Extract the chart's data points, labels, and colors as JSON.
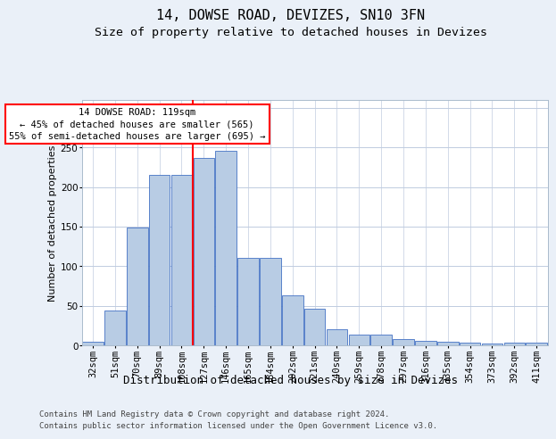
{
  "title1": "14, DOWSE ROAD, DEVIZES, SN10 3FN",
  "title2": "Size of property relative to detached houses in Devizes",
  "xlabel": "Distribution of detached houses by size in Devizes",
  "ylabel": "Number of detached properties",
  "categories": [
    "32sqm",
    "51sqm",
    "70sqm",
    "89sqm",
    "108sqm",
    "127sqm",
    "146sqm",
    "165sqm",
    "184sqm",
    "202sqm",
    "221sqm",
    "240sqm",
    "259sqm",
    "278sqm",
    "297sqm",
    "316sqm",
    "335sqm",
    "354sqm",
    "373sqm",
    "392sqm",
    "411sqm"
  ],
  "values": [
    4,
    44,
    149,
    215,
    215,
    237,
    246,
    110,
    110,
    63,
    46,
    20,
    13,
    13,
    8,
    6,
    4,
    3,
    2,
    3,
    3
  ],
  "bar_color": "#b8cce4",
  "bar_edge_color": "#4472c4",
  "vline_index": 5,
  "vline_color": "red",
  "annotation_text": "14 DOWSE ROAD: 119sqm\n← 45% of detached houses are smaller (565)\n55% of semi-detached houses are larger (695) →",
  "annotation_box_color": "white",
  "annotation_box_edge": "red",
  "ylim": [
    0,
    310
  ],
  "yticks": [
    0,
    50,
    100,
    150,
    200,
    250,
    300
  ],
  "bg_color": "#eaf0f8",
  "plot_bg_color": "white",
  "footer1": "Contains HM Land Registry data © Crown copyright and database right 2024.",
  "footer2": "Contains public sector information licensed under the Open Government Licence v3.0.",
  "title1_fontsize": 11,
  "title2_fontsize": 9.5,
  "xlabel_fontsize": 9,
  "ylabel_fontsize": 8,
  "tick_fontsize": 7.5,
  "annotation_fontsize": 7.5,
  "footer_fontsize": 6.5
}
